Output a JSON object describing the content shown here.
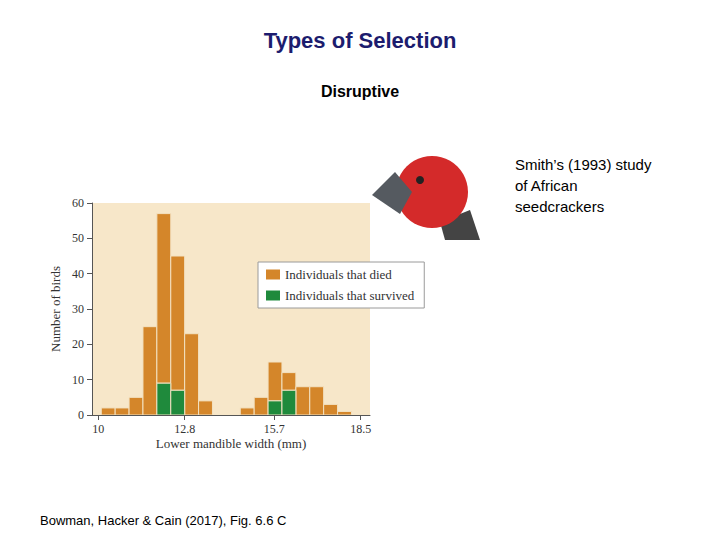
{
  "chart_data": {
    "type": "histogram",
    "title": "Types of Selection",
    "subtitle": "Disruptive",
    "x_label": "Lower mandible width (mm)",
    "y_label": "Number of birds",
    "bins": [
      10.1,
      10.55,
      11.0,
      11.45,
      11.9,
      12.35,
      12.8,
      13.25,
      13.7,
      14.15,
      14.6,
      15.05,
      15.5,
      15.95,
      16.4,
      16.85,
      17.3,
      17.75,
      18.2
    ],
    "series": [
      {
        "name": "Individuals that died",
        "color": "#d4862a",
        "values": [
          2,
          2,
          5,
          25,
          48,
          38,
          23,
          4,
          0,
          0,
          2,
          5,
          11,
          5,
          8,
          8,
          3,
          1
        ]
      },
      {
        "name": "Individuals that survived",
        "color": "#1f8a3c",
        "values": [
          0,
          0,
          0,
          0,
          9,
          7,
          0,
          0,
          0,
          0,
          0,
          0,
          4,
          7,
          0,
          0,
          0,
          0
        ]
      }
    ],
    "stacked": true,
    "xlim": [
      9.8,
      18.8
    ],
    "xticks": [
      10,
      12.8,
      15.7,
      18.5
    ],
    "ylim": [
      0,
      60
    ],
    "yticks": [
      0,
      10,
      20,
      30,
      40,
      50,
      60
    ],
    "grid": false,
    "legend": "right",
    "annotations": [
      {
        "text": "Smith’s (1993) study\nof African\nseedcrackers"
      },
      {
        "text": "Bowman, Hacker & Cain (2017), Fig. 6.6 C"
      }
    ]
  }
}
